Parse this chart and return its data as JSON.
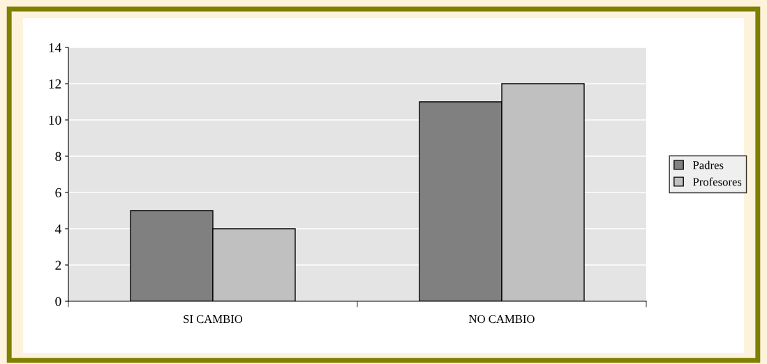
{
  "chart_data": {
    "type": "bar",
    "categories": [
      "SI CAMBIO",
      "NO CAMBIO"
    ],
    "series": [
      {
        "name": "Padres",
        "color": "#808080",
        "values": [
          5,
          11
        ]
      },
      {
        "name": "Profesores",
        "color": "#c0c0c0",
        "values": [
          4,
          12
        ]
      }
    ],
    "ylim": [
      0,
      14
    ],
    "yticks": [
      0,
      2,
      4,
      6,
      8,
      10,
      12,
      14
    ],
    "grid": "y",
    "legend": "right"
  }
}
